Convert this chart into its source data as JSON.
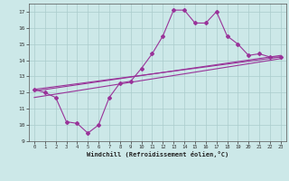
{
  "xlabel": "Windchill (Refroidissement éolien,°C)",
  "xlim": [
    -0.5,
    23.5
  ],
  "ylim": [
    9,
    17.5
  ],
  "yticks": [
    9,
    10,
    11,
    12,
    13,
    14,
    15,
    16,
    17
  ],
  "xticks": [
    0,
    1,
    2,
    3,
    4,
    5,
    6,
    7,
    8,
    9,
    10,
    11,
    12,
    13,
    14,
    15,
    16,
    17,
    18,
    19,
    20,
    21,
    22,
    23
  ],
  "line_color": "#993399",
  "bg_color": "#cce8e8",
  "grid_color": "#aacccc",
  "main_series_x": [
    0,
    1,
    2,
    3,
    4,
    5,
    6,
    7,
    8,
    9,
    10,
    11,
    12,
    13,
    14,
    15,
    16,
    17,
    18,
    19,
    20,
    21,
    22,
    23
  ],
  "main_series_y": [
    12.2,
    12.0,
    11.7,
    10.2,
    10.1,
    9.5,
    10.0,
    11.7,
    12.6,
    12.7,
    13.5,
    14.4,
    15.5,
    17.1,
    17.1,
    16.3,
    16.3,
    17.0,
    15.5,
    15.0,
    14.3,
    14.4,
    14.2,
    14.2
  ],
  "trend_lines": [
    {
      "x": [
        0,
        23
      ],
      "y": [
        12.2,
        14.2
      ]
    },
    {
      "x": [
        0,
        23
      ],
      "y": [
        12.1,
        14.3
      ]
    },
    {
      "x": [
        0,
        23
      ],
      "y": [
        11.7,
        14.1
      ]
    }
  ]
}
